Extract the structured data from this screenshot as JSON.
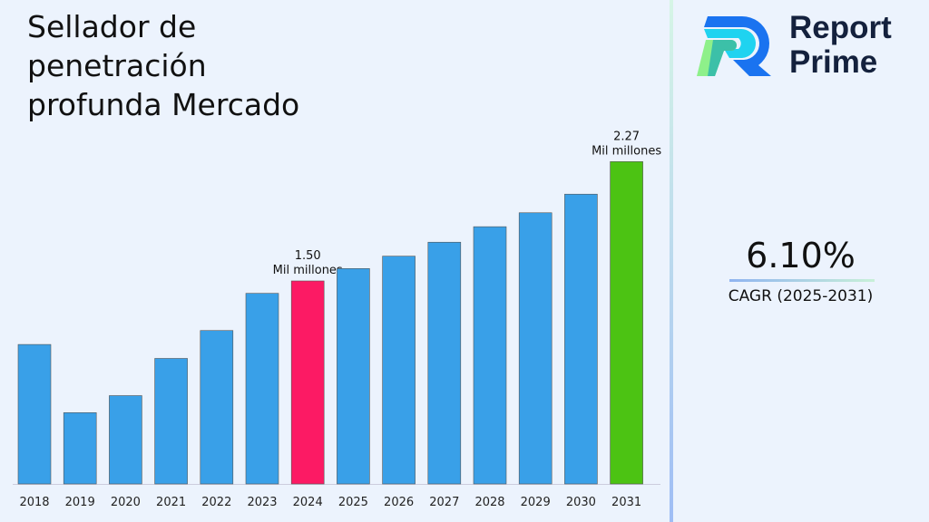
{
  "title": "Sellador de penetración profunda Mercado",
  "brand": {
    "line1": "Report",
    "line2": "Prime"
  },
  "cagr": {
    "value": "6.10%",
    "label": "CAGR (2025-2031)"
  },
  "colors": {
    "default": "#39a0e8",
    "highlight": "#fc1a64",
    "final": "#4cc313"
  },
  "chart_data": {
    "type": "bar",
    "categories": [
      "2018",
      "2019",
      "2020",
      "2021",
      "2022",
      "2023",
      "2024",
      "2025",
      "2026",
      "2027",
      "2028",
      "2029",
      "2030",
      "2031"
    ],
    "values": [
      1.09,
      0.65,
      0.76,
      1.0,
      1.18,
      1.42,
      1.5,
      1.58,
      1.66,
      1.75,
      1.85,
      1.94,
      2.06,
      2.27
    ],
    "annotations": [
      {
        "category": "2024",
        "value": "1.50",
        "unit": "Mil millones"
      },
      {
        "category": "2031",
        "value": "2.27",
        "unit": "Mil millones"
      }
    ],
    "ylim": [
      0.19,
      2.4
    ],
    "grid": false
  }
}
